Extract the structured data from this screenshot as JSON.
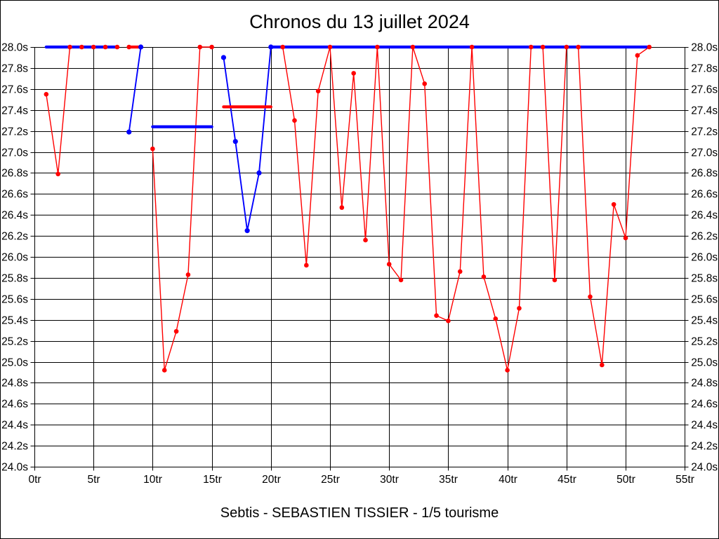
{
  "title": "Chronos du 13 juillet 2024",
  "subtitle": "Sebtis - SEBASTIEN TISSIER - 1/5 tourisme",
  "colors": {
    "series_red": "#ff0000",
    "series_blue": "#0000ff",
    "grid": "#000000",
    "text": "#000000",
    "background": "#ffffff"
  },
  "chart_data": {
    "type": "line",
    "title": "Chronos du 13 juillet 2024",
    "subtitle": "Sebtis - SEBASTIEN TISSIER - 1/5 tourisme",
    "x_unit": "tr",
    "y_unit": "s",
    "xlim": [
      0,
      55
    ],
    "ylim": [
      24.0,
      28.0
    ],
    "grid": true,
    "x_ticks": {
      "values": [
        0,
        5,
        10,
        15,
        20,
        25,
        30,
        35,
        40,
        45,
        50,
        55
      ],
      "labels": [
        "0tr",
        "5tr",
        "10tr",
        "15tr",
        "20tr",
        "25tr",
        "30tr",
        "35tr",
        "40tr",
        "45tr",
        "50tr",
        "55tr"
      ]
    },
    "y_ticks": {
      "values": [
        28.0,
        27.8,
        27.6,
        27.4,
        27.2,
        27.0,
        26.8,
        26.6,
        26.4,
        26.2,
        26.0,
        25.8,
        25.6,
        25.4,
        25.2,
        25.0,
        24.8,
        24.6,
        24.4,
        24.2,
        24.0
      ],
      "labels": [
        "28.0s",
        "27.8s",
        "27.6s",
        "27.4s",
        "27.2s",
        "27.0s",
        "26.8s",
        "26.6s",
        "26.4s",
        "26.2s",
        "26.0s",
        "25.8s",
        "25.6s",
        "25.4s",
        "25.2s",
        "25.0s",
        "24.8s",
        "24.6s",
        "24.4s",
        "24.2s",
        "24.0s"
      ]
    },
    "segments": [
      {
        "id": "red-laps-stint-1",
        "color": "#ff0000",
        "type": "line",
        "points": [
          [
            1,
            27.55
          ],
          [
            2,
            26.79
          ],
          [
            3,
            28.0
          ],
          [
            4,
            28.0
          ],
          [
            5,
            28.0
          ],
          [
            6,
            28.0
          ],
          [
            7,
            28.0
          ]
        ]
      },
      {
        "id": "blue-average-bar-1",
        "color": "#0000ff",
        "type": "bar",
        "y": 28.0,
        "x1": 1,
        "x2": 7
      },
      {
        "id": "red-average-bar-1",
        "color": "#ff0000",
        "type": "bar",
        "y": 28.0,
        "x1": 8,
        "x2": 9,
        "dots": [
          [
            8,
            28.0
          ],
          [
            9,
            28.0
          ]
        ]
      },
      {
        "id": "blue-laps-v",
        "color": "#0000ff",
        "type": "line",
        "points": [
          [
            8,
            27.19
          ],
          [
            9,
            28.0
          ]
        ]
      },
      {
        "id": "red-laps-stint-2",
        "color": "#ff0000",
        "type": "line",
        "points": [
          [
            10,
            27.03
          ],
          [
            11,
            24.92
          ],
          [
            12,
            25.29
          ],
          [
            13,
            25.83
          ],
          [
            14,
            28.0
          ],
          [
            15,
            28.0
          ]
        ]
      },
      {
        "id": "blue-average-bar-2",
        "color": "#0000ff",
        "type": "bar",
        "y": 27.24,
        "x1": 10,
        "x2": 15
      },
      {
        "id": "red-average-bar-2",
        "color": "#ff0000",
        "type": "bar",
        "y": 27.43,
        "x1": 16,
        "x2": 20
      },
      {
        "id": "blue-laps-w",
        "color": "#0000ff",
        "type": "line",
        "points": [
          [
            16,
            27.9
          ],
          [
            17,
            27.1
          ],
          [
            18,
            26.25
          ],
          [
            19,
            26.8
          ],
          [
            20,
            28.0
          ]
        ]
      },
      {
        "id": "blue-average-bar-3",
        "color": "#0000ff",
        "type": "bar",
        "y": 28.0,
        "x1": 20,
        "x2": 52
      },
      {
        "id": "red-laps-stint-3",
        "color": "#ff0000",
        "type": "line",
        "points": [
          [
            21,
            28.0
          ],
          [
            22,
            27.3
          ],
          [
            23,
            25.92
          ],
          [
            24,
            27.58
          ],
          [
            25,
            28.0
          ],
          [
            26,
            26.47
          ],
          [
            27,
            27.75
          ],
          [
            28,
            26.16
          ],
          [
            29,
            28.0
          ],
          [
            30,
            25.93
          ],
          [
            31,
            25.78
          ],
          [
            32,
            28.0
          ],
          [
            33,
            27.65
          ],
          [
            34,
            25.44
          ],
          [
            35,
            25.39
          ],
          [
            36,
            25.86
          ],
          [
            37,
            28.0
          ],
          [
            38,
            25.81
          ],
          [
            39,
            25.41
          ],
          [
            40,
            24.92
          ],
          [
            41,
            25.51
          ],
          [
            42,
            28.0
          ],
          [
            43,
            28.0
          ],
          [
            44,
            25.78
          ],
          [
            45,
            28.0
          ],
          [
            46,
            28.0
          ],
          [
            47,
            25.62
          ],
          [
            48,
            24.97
          ],
          [
            49,
            26.5
          ],
          [
            50,
            26.18
          ],
          [
            51,
            27.92
          ],
          [
            52,
            28.0
          ]
        ]
      }
    ]
  }
}
